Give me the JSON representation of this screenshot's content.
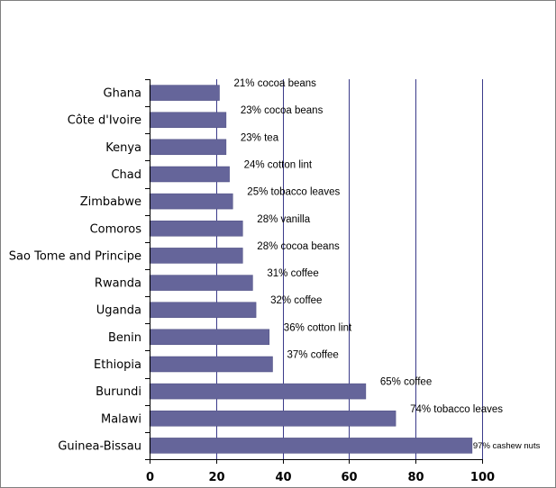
{
  "chart_data": {
    "type": "bar",
    "orientation": "horizontal",
    "categories": [
      "Ghana",
      "Côte d'Ivoire",
      "Kenya",
      "Chad",
      "Zimbabwe",
      "Comoros",
      "Sao Tome and Principe",
      "Rwanda",
      "Uganda",
      "Benin",
      "Ethiopia",
      "Burundi",
      "Malawi",
      "Guinea-Bissau"
    ],
    "values": [
      21,
      23,
      23,
      24,
      25,
      28,
      28,
      31,
      32,
      36,
      37,
      65,
      74,
      97
    ],
    "data_labels": [
      "21%  cocoa beans",
      "23%  cocoa beans",
      "23%  tea",
      "24%  cotton lint",
      "25%  tobacco leaves",
      "28%  vanilla",
      "28%  cocoa beans",
      "31%  coffee",
      "32%  coffee",
      "36%  cotton lint",
      "37%  coffee",
      "65%  coffee",
      "74%  tobacco leaves",
      "97% cashew nuts"
    ],
    "xlim": [
      0,
      100
    ],
    "xticks": [
      0,
      20,
      40,
      60,
      80,
      100
    ],
    "title": "",
    "xlabel": "",
    "ylabel": "",
    "grid": "vertical",
    "legend": "none",
    "colors": {
      "bar": "#65659a",
      "bar_edge": "#4a4a80",
      "grid": "#3a3a8a",
      "axis": "#000000",
      "frame": "#7f7f7f"
    }
  }
}
